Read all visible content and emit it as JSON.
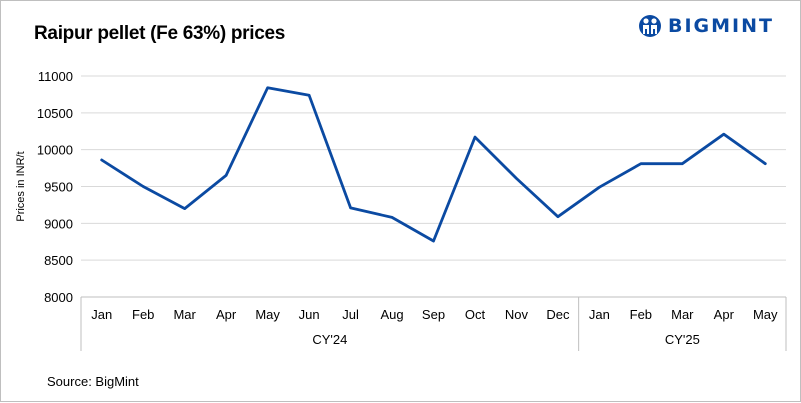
{
  "brand": {
    "name": "BIGMINT",
    "logo_icon": "bigmint-people-icon",
    "color": "#0b4aa2"
  },
  "source": "Source: BigMint",
  "chart_data": {
    "type": "line",
    "title": "Raipur pellet (Fe 63%) prices",
    "ylabel": "Prices in INR/t",
    "xlabel": "",
    "ylim": [
      8000,
      11000
    ],
    "yticks": [
      8000,
      8500,
      9000,
      9500,
      10000,
      10500,
      11000
    ],
    "grid": true,
    "legend": "none",
    "categories": [
      "Jan",
      "Feb",
      "Mar",
      "Apr",
      "May",
      "Jun",
      "Jul",
      "Aug",
      "Sep",
      "Oct",
      "Nov",
      "Dec",
      "Jan",
      "Feb",
      "Mar",
      "Apr",
      "May"
    ],
    "groups": [
      {
        "label": "CY'24",
        "count": 12
      },
      {
        "label": "CY'25",
        "count": 5
      }
    ],
    "series": [
      {
        "color": "#0b4aa2",
        "values": [
          9860,
          9500,
          9200,
          9650,
          10840,
          10740,
          9210,
          9080,
          8760,
          10170,
          9610,
          9090,
          9490,
          9810,
          9810,
          10210,
          9810
        ]
      }
    ]
  }
}
